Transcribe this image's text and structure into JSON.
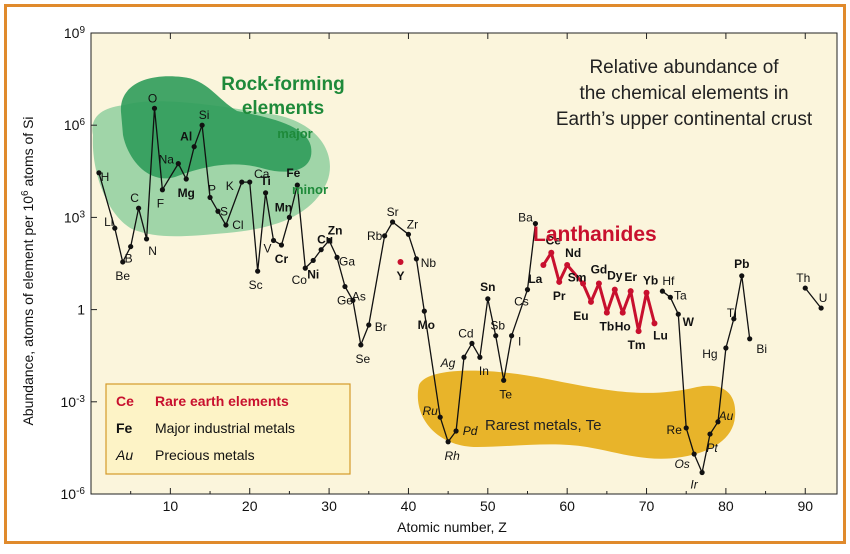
{
  "chart_data": {
    "type": "line",
    "title": "Relative abundance of the chemical elements in Earth's upper continental crust",
    "title_lines": [
      "Relative abundance of",
      "the chemical elements in",
      "Earth’s upper continental crust"
    ],
    "xlabel": "Atomic number, Z",
    "ylabel": "Abundance, atoms of element per 10^6 atoms of Si",
    "ylabel_parts": [
      "Abundance, atoms of element per 10",
      "6",
      " atoms of Si"
    ],
    "xlim": [
      0,
      94
    ],
    "ylim_exponent": [
      -6,
      9
    ],
    "log_y": true,
    "x_ticks": [
      "10",
      "20",
      "30",
      "40",
      "50",
      "60",
      "70",
      "80",
      "90"
    ],
    "y_ticks": [
      {
        "base": "10",
        "exp": "9",
        "value": 9
      },
      {
        "base": "10",
        "exp": "6",
        "value": 6
      },
      {
        "base": "10",
        "exp": "3",
        "value": 3
      },
      {
        "base": "1",
        "exp": "",
        "value": 0
      },
      {
        "base": "10",
        "exp": "-3",
        "value": -3
      },
      {
        "base": "10",
        "exp": "-6",
        "value": -6
      }
    ],
    "series": [
      {
        "class": "main",
        "color": "#111111",
        "points": [
          {
            "z": 1,
            "sym": "H",
            "logv": 4.45
          },
          {
            "z": 3,
            "sym": "Li",
            "logv": 2.65
          },
          {
            "z": 4,
            "sym": "Be",
            "logv": 1.55
          },
          {
            "z": 5,
            "sym": "B",
            "logv": 2.05
          },
          {
            "z": 6,
            "sym": "C",
            "logv": 3.3
          },
          {
            "z": 7,
            "sym": "N",
            "logv": 2.3
          },
          {
            "z": 8,
            "sym": "O",
            "logv": 6.55
          },
          {
            "z": 9,
            "sym": "F",
            "logv": 3.9
          },
          {
            "z": 11,
            "sym": "Na",
            "logv": 4.75
          },
          {
            "z": 12,
            "sym": "Mg",
            "logv": 4.25
          },
          {
            "z": 13,
            "sym": "Al",
            "logv": 5.3
          },
          {
            "z": 14,
            "sym": "Si",
            "logv": 6.0
          },
          {
            "z": 15,
            "sym": "P",
            "logv": 3.65
          },
          {
            "z": 16,
            "sym": "S",
            "logv": 3.2
          },
          {
            "z": 17,
            "sym": "Cl",
            "logv": 2.75
          },
          {
            "z": 19,
            "sym": "K",
            "logv": 4.15
          },
          {
            "z": 20,
            "sym": "Ca",
            "logv": 4.15
          },
          {
            "z": 21,
            "sym": "Sc",
            "logv": 1.25
          },
          {
            "z": 22,
            "sym": "Ti",
            "logv": 3.8
          },
          {
            "z": 23,
            "sym": "V",
            "logv": 2.25
          },
          {
            "z": 24,
            "sym": "Cr",
            "logv": 2.1
          },
          {
            "z": 25,
            "sym": "Mn",
            "logv": 3.0
          },
          {
            "z": 26,
            "sym": "Fe",
            "logv": 4.05
          },
          {
            "z": 27,
            "sym": "Co",
            "logv": 1.35
          },
          {
            "z": 28,
            "sym": "Ni",
            "logv": 1.6
          },
          {
            "z": 29,
            "sym": "Cu",
            "logv": 1.95
          },
          {
            "z": 30,
            "sym": "Zn",
            "logv": 2.25
          },
          {
            "z": 31,
            "sym": "Ga",
            "logv": 1.7
          },
          {
            "z": 32,
            "sym": "Ge",
            "logv": 0.75
          },
          {
            "z": 33,
            "sym": "As",
            "logv": 0.3
          },
          {
            "z": 34,
            "sym": "Se",
            "logv": -1.15
          },
          {
            "z": 35,
            "sym": "Br",
            "logv": -0.5
          },
          {
            "z": 37,
            "sym": "Rb",
            "logv": 2.4
          },
          {
            "z": 38,
            "sym": "Sr",
            "logv": 2.85
          },
          {
            "z": 40,
            "sym": "Zr",
            "logv": 2.45
          },
          {
            "z": 41,
            "sym": "Nb",
            "logv": 1.65
          },
          {
            "z": 42,
            "sym": "Mo",
            "logv": -0.05
          },
          {
            "z": 44,
            "sym": "Ru",
            "logv": -3.5
          },
          {
            "z": 45,
            "sym": "Rh",
            "logv": -4.3
          },
          {
            "z": 46,
            "sym": "Pd",
            "logv": -3.95
          },
          {
            "z": 47,
            "sym": "Ag",
            "logv": -1.55
          },
          {
            "z": 48,
            "sym": "Cd",
            "logv": -1.1
          },
          {
            "z": 49,
            "sym": "In",
            "logv": -1.55
          },
          {
            "z": 50,
            "sym": "Sn",
            "logv": 0.35
          },
          {
            "z": 51,
            "sym": "Sb",
            "logv": -0.85
          },
          {
            "z": 52,
            "sym": "Te",
            "logv": -2.3
          },
          {
            "z": 53,
            "sym": "I",
            "logv": -0.85
          },
          {
            "z": 55,
            "sym": "Cs",
            "logv": 0.65
          },
          {
            "z": 56,
            "sym": "Ba",
            "logv": 2.8
          },
          {
            "z": 72,
            "sym": "Hf",
            "logv": 0.6
          },
          {
            "z": 73,
            "sym": "Ta",
            "logv": 0.4
          },
          {
            "z": 74,
            "sym": "W",
            "logv": -0.15
          },
          {
            "z": 75,
            "sym": "Re",
            "logv": -3.85
          },
          {
            "z": 76,
            "sym": "Os",
            "logv": -4.7
          },
          {
            "z": 77,
            "sym": "Ir",
            "logv": -5.3
          },
          {
            "z": 78,
            "sym": "Pt",
            "logv": -4.05
          },
          {
            "z": 79,
            "sym": "Au",
            "logv": -3.65
          },
          {
            "z": 80,
            "sym": "Hg",
            "logv": -1.25
          },
          {
            "z": 81,
            "sym": "Tl",
            "logv": -0.3
          },
          {
            "z": 82,
            "sym": "Pb",
            "logv": 1.1
          },
          {
            "z": 83,
            "sym": "Bi",
            "logv": -0.95
          },
          {
            "z": 90,
            "sym": "Th",
            "logv": 0.7
          },
          {
            "z": 92,
            "sym": "U",
            "logv": 0.05
          }
        ]
      },
      {
        "class": "ree",
        "color": "#c8102e",
        "points": [
          {
            "z": 39,
            "sym": "Y",
            "logv": 1.55
          },
          {
            "z": 57,
            "sym": "La",
            "logv": 1.45
          },
          {
            "z": 58,
            "sym": "Ce",
            "logv": 1.85
          },
          {
            "z": 59,
            "sym": "Pr",
            "logv": 0.9
          },
          {
            "z": 60,
            "sym": "Nd",
            "logv": 1.45
          },
          {
            "z": 62,
            "sym": "Sm",
            "logv": 0.85
          },
          {
            "z": 63,
            "sym": "Eu",
            "logv": 0.25
          },
          {
            "z": 64,
            "sym": "Gd",
            "logv": 0.85
          },
          {
            "z": 65,
            "sym": "Tb",
            "logv": -0.1
          },
          {
            "z": 66,
            "sym": "Dy",
            "logv": 0.65
          },
          {
            "z": 67,
            "sym": "Ho",
            "logv": -0.1
          },
          {
            "z": 68,
            "sym": "Er",
            "logv": 0.6
          },
          {
            "z": 69,
            "sym": "Tm",
            "logv": -0.7
          },
          {
            "z": 70,
            "sym": "Yb",
            "logv": 0.55
          },
          {
            "z": 71,
            "sym": "Lu",
            "logv": -0.45
          }
        ]
      }
    ],
    "emphasis": {
      "bold": [
        "Al",
        "Mg",
        "Fe",
        "Ti",
        "Mn",
        "Cr",
        "Cu",
        "Zn",
        "Ni",
        "Mo",
        "Sn",
        "W",
        "Pb"
      ],
      "italic": [
        "Ag",
        "Ru",
        "Pd",
        "Rh",
        "Os",
        "Ir",
        "Pt",
        "Au"
      ],
      "small": [
        "Ge"
      ]
    },
    "annotations": {
      "rock_forming": "Rock-forming elements",
      "rock_forming_lines": [
        "Rock-forming",
        "elements"
      ],
      "major": "major",
      "minor": "minor",
      "lanthanides": "Lanthanides",
      "rarest": "Rarest metals, Te"
    },
    "legend": {
      "placement": "bottom-left",
      "items": [
        {
          "sym": "Ce",
          "text": "Rare earth elements",
          "style": "ree"
        },
        {
          "sym": "Fe",
          "text": "Major industrial metals",
          "style": "industrial"
        },
        {
          "sym": "Au",
          "text": "Precious metals",
          "style": "precious"
        }
      ]
    },
    "colors": {
      "frame": "#e08a2c",
      "plot_bg": "#fbf5dc",
      "major_region": "#2f9c5a",
      "minor_region": "#8fcf9f",
      "rarest_region": "#e8b42a",
      "green_text": "#1e8a3a",
      "ree": "#c8102e",
      "line": "#111111",
      "legend_bg": "#fdf3c6"
    }
  }
}
